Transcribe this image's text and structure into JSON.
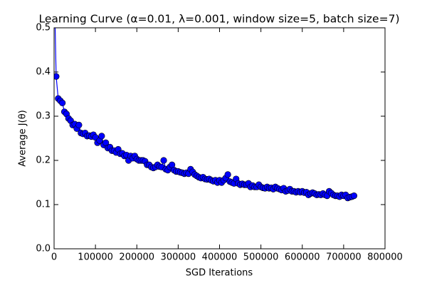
{
  "chart_data": {
    "type": "line",
    "title": "Learning Curve (α=0.01, λ=0.001, window size=5, batch size=7)",
    "x_label": "SGD Iterations",
    "y_label": "Average J(θ)",
    "marker": "o",
    "xlim": [
      0,
      800000
    ],
    "ylim": [
      0,
      0.5
    ],
    "xticks": [
      0,
      100000,
      200000,
      300000,
      400000,
      500000,
      600000,
      700000,
      800000
    ],
    "yticks": [
      {
        "value": 0,
        "label": "0.0"
      },
      0.1,
      0.2,
      0.3,
      0.4,
      0.5
    ],
    "x": [
      0,
      5000,
      10000,
      15000,
      20000,
      25000,
      30000,
      35000,
      40000,
      45000,
      50000,
      55000,
      60000,
      65000,
      70000,
      75000,
      80000,
      85000,
      90000,
      95000,
      100000,
      105000,
      110000,
      115000,
      120000,
      125000,
      130000,
      135000,
      140000,
      145000,
      150000,
      155000,
      160000,
      165000,
      170000,
      175000,
      180000,
      185000,
      190000,
      195000,
      200000,
      205000,
      210000,
      215000,
      220000,
      225000,
      230000,
      235000,
      240000,
      245000,
      250000,
      255000,
      260000,
      265000,
      270000,
      275000,
      280000,
      285000,
      290000,
      295000,
      300000,
      305000,
      310000,
      315000,
      320000,
      325000,
      330000,
      335000,
      340000,
      345000,
      350000,
      355000,
      360000,
      365000,
      370000,
      375000,
      380000,
      385000,
      390000,
      395000,
      400000,
      405000,
      410000,
      415000,
      420000,
      425000,
      430000,
      435000,
      440000,
      445000,
      450000,
      455000,
      460000,
      465000,
      470000,
      475000,
      480000,
      485000,
      490000,
      495000,
      500000,
      505000,
      510000,
      515000,
      520000,
      525000,
      530000,
      535000,
      540000,
      545000,
      550000,
      555000,
      560000,
      565000,
      570000,
      575000,
      580000,
      585000,
      590000,
      595000,
      600000,
      605000,
      610000,
      615000,
      620000,
      625000,
      630000,
      635000,
      640000,
      645000,
      650000,
      655000,
      660000,
      665000,
      670000,
      675000,
      680000,
      685000,
      690000,
      695000,
      700000,
      705000,
      710000,
      715000,
      720000,
      725000
    ],
    "series": [
      {
        "color": "#0000ff",
        "values": [
          0.62,
          0.39,
          0.34,
          0.335,
          0.33,
          0.31,
          0.305,
          0.295,
          0.29,
          0.28,
          0.282,
          0.272,
          0.28,
          0.262,
          0.26,
          0.262,
          0.255,
          0.256,
          0.254,
          0.258,
          0.252,
          0.24,
          0.245,
          0.255,
          0.235,
          0.24,
          0.228,
          0.23,
          0.222,
          0.222,
          0.218,
          0.225,
          0.215,
          0.216,
          0.21,
          0.212,
          0.2,
          0.21,
          0.205,
          0.21,
          0.203,
          0.2,
          0.2,
          0.2,
          0.198,
          0.19,
          0.19,
          0.185,
          0.183,
          0.185,
          0.19,
          0.186,
          0.185,
          0.2,
          0.18,
          0.178,
          0.185,
          0.19,
          0.178,
          0.175,
          0.175,
          0.173,
          0.172,
          0.17,
          0.172,
          0.17,
          0.18,
          0.174,
          0.168,
          0.165,
          0.162,
          0.16,
          0.162,
          0.158,
          0.157,
          0.158,
          0.155,
          0.153,
          0.155,
          0.15,
          0.155,
          0.15,
          0.155,
          0.16,
          0.168,
          0.152,
          0.15,
          0.148,
          0.158,
          0.148,
          0.145,
          0.147,
          0.145,
          0.145,
          0.148,
          0.14,
          0.143,
          0.14,
          0.14,
          0.145,
          0.14,
          0.138,
          0.137,
          0.14,
          0.137,
          0.138,
          0.135,
          0.14,
          0.137,
          0.135,
          0.133,
          0.137,
          0.13,
          0.132,
          0.135,
          0.13,
          0.13,
          0.128,
          0.13,
          0.128,
          0.13,
          0.127,
          0.128,
          0.122,
          0.125,
          0.127,
          0.125,
          0.122,
          0.123,
          0.122,
          0.125,
          0.122,
          0.12,
          0.13,
          0.126,
          0.122,
          0.12,
          0.12,
          0.118,
          0.122,
          0.12,
          0.122,
          0.115,
          0.117,
          0.118,
          0.12
        ]
      }
    ]
  }
}
